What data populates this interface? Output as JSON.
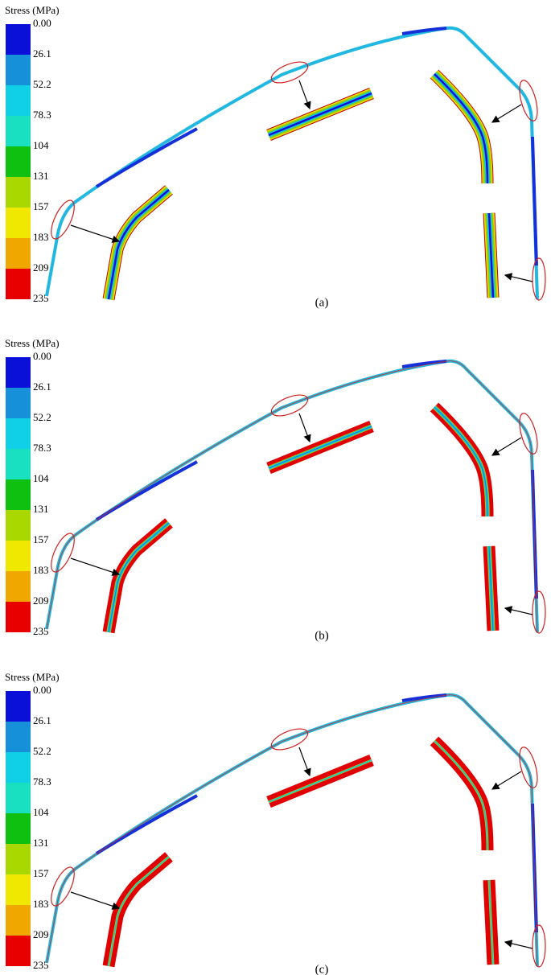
{
  "panels": [
    {
      "label": "(a)",
      "legend_title": "Stress (MPa)",
      "legend_labels": [
        "0.00",
        "26.1",
        "52.2",
        "78.3",
        "104",
        "131",
        "157",
        "183",
        "209",
        "235"
      ]
    },
    {
      "label": "(b)",
      "legend_title": "Stress (MPa)",
      "legend_labels": [
        "0.00",
        "26.1",
        "52.2",
        "78.3",
        "104",
        "131",
        "157",
        "183",
        "209",
        "235"
      ]
    },
    {
      "label": "(c)",
      "legend_title": "Stress (MPa)",
      "legend_labels": [
        "0.00",
        "26.1",
        "52.2",
        "78.3",
        "104",
        "131",
        "157",
        "183",
        "209",
        "235"
      ]
    }
  ]
}
